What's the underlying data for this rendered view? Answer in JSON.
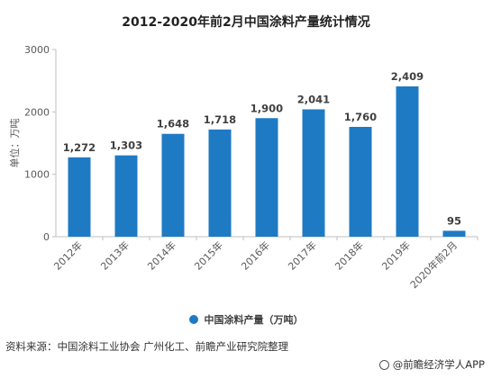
{
  "chart_data": {
    "type": "bar",
    "title": "2012-2020年前2月中国涂料产量统计情况",
    "ylabel": "单位：万吨",
    "categories": [
      "2012年",
      "2013年",
      "2014年",
      "2015年",
      "2016年",
      "2017年",
      "2018年",
      "2019年",
      "2020年前2月"
    ],
    "series": [
      {
        "name": "中国涂料产量（万吨）",
        "values": [
          1272,
          1303,
          1648,
          1718,
          1900,
          2041,
          1760,
          2409,
          95
        ]
      }
    ],
    "data_labels": [
      "1,272",
      "1,303",
      "1,648",
      "1,718",
      "1,900",
      "2,041",
      "1,760",
      "2,409",
      "95"
    ],
    "yticks": [
      0,
      1000,
      2000,
      3000
    ],
    "ylim": [
      0,
      3000
    ],
    "grid": false,
    "legend_position": "bottom",
    "bar_color": "#1f7ac4"
  },
  "source_text": "资料来源：中国涂料工业协会 广州化工、前瞻产业研究院整理",
  "brand_text": "@前瞻经济学人APP"
}
